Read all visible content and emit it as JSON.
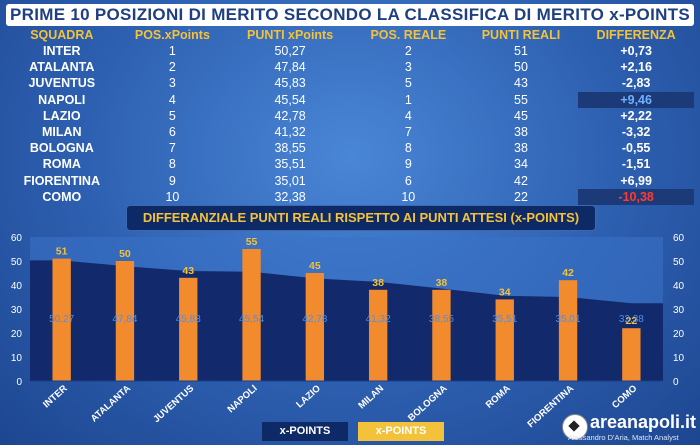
{
  "title": "PRIME 10 POSIZIONI DI MERITO SECONDO LA CLASSIFICA DI MERITO x-POINTS",
  "table": {
    "headers": [
      "SQUADRA",
      "POS.xPoints",
      "PUNTI xPoints",
      "POS. REALE",
      "PUNTI REALI",
      "DIFFERENZA"
    ],
    "rows": [
      {
        "team": "INTER",
        "pos_x": "1",
        "punti_x": "50,27",
        "pos_real": "2",
        "punti_real": "51",
        "diff": "+0,73"
      },
      {
        "team": "ATALANTA",
        "pos_x": "2",
        "punti_x": "47,84",
        "pos_real": "3",
        "punti_real": "50",
        "diff": "+2,16"
      },
      {
        "team": "JUVENTUS",
        "pos_x": "3",
        "punti_x": "45,83",
        "pos_real": "5",
        "punti_real": "43",
        "diff": "-2,83"
      },
      {
        "team": "NAPOLI",
        "pos_x": "4",
        "punti_x": "45,54",
        "pos_real": "1",
        "punti_real": "55",
        "diff": "+9,46"
      },
      {
        "team": "LAZIO",
        "pos_x": "5",
        "punti_x": "42,78",
        "pos_real": "4",
        "punti_real": "45",
        "diff": "+2,22"
      },
      {
        "team": "MILAN",
        "pos_x": "6",
        "punti_x": "41,32",
        "pos_real": "7",
        "punti_real": "38",
        "diff": "-3,32"
      },
      {
        "team": "BOLOGNA",
        "pos_x": "7",
        "punti_x": "38,55",
        "pos_real": "8",
        "punti_real": "38",
        "diff": "-0,55"
      },
      {
        "team": "ROMA",
        "pos_x": "8",
        "punti_x": "35,51",
        "pos_real": "9",
        "punti_real": "34",
        "diff": "-1,51"
      },
      {
        "team": "FIORENTINA",
        "pos_x": "9",
        "punti_x": "35,01",
        "pos_real": "6",
        "punti_real": "42",
        "diff": "+6,99"
      },
      {
        "team": "COMO",
        "pos_x": "10",
        "punti_x": "32,38",
        "pos_real": "10",
        "punti_real": "22",
        "diff": "-10,38"
      }
    ]
  },
  "chart_data": {
    "type": "bar",
    "title": "DIFFERANZIALE PUNTI REALI RISPETTO AI PUNTI ATTESI (x-POINTS)",
    "categories": [
      "INTER",
      "ATALANTA",
      "JUVENTUS",
      "NAPOLI",
      "LAZIO",
      "MILAN",
      "BOLOGNA",
      "ROMA",
      "FIORENTINA",
      "COMO"
    ],
    "series": [
      {
        "name": "x-POINTS",
        "type": "area",
        "color": "#122a6b",
        "values": [
          50.27,
          47.84,
          45.83,
          45.54,
          42.78,
          41.32,
          38.55,
          35.51,
          35.01,
          32.38
        ],
        "labels": [
          "50,27",
          "47,84",
          "45,83",
          "45,54",
          "42,78",
          "41,32",
          "38,55",
          "35,51",
          "35,01",
          "32,38"
        ]
      },
      {
        "name": "x-POINTS",
        "type": "bar",
        "color": "#f28a2e",
        "values": [
          51,
          50,
          43,
          55,
          45,
          38,
          38,
          34,
          42,
          22
        ],
        "labels": [
          "51",
          "50",
          "43",
          "55",
          "45",
          "38",
          "38",
          "34",
          "42",
          "22"
        ]
      }
    ],
    "ylim": [
      0,
      60
    ],
    "yticks": [
      "0",
      "10",
      "20",
      "30",
      "40",
      "50",
      "60"
    ],
    "grid": false,
    "legend": "bottom"
  },
  "branding": {
    "site": "areanapoli.it",
    "credit": "Alessandro D'Aria, Match Analyst"
  },
  "colors": {
    "accent": "#f3c23a",
    "positive": "#6fb0ff",
    "negative": "#ff3b30"
  }
}
